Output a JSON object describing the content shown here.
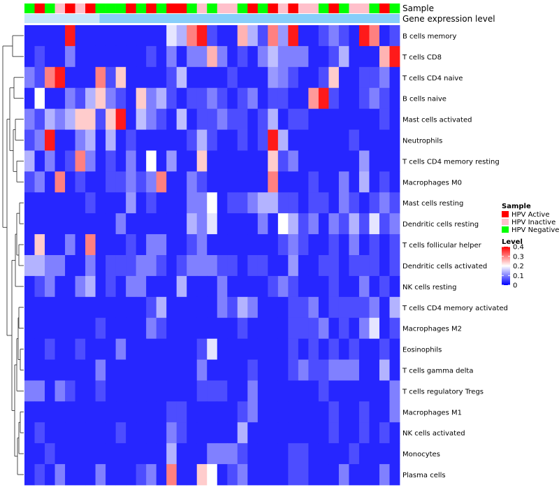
{
  "chart_data": {
    "type": "heatmap",
    "title": "",
    "xlabel": "",
    "ylabel": "",
    "annotation_tracks": [
      "Sample",
      "Gene expression level"
    ],
    "rows": [
      "B cells memory",
      "T cells CD8",
      "T cells CD4 naive",
      "B cells naive",
      "Mast cells activated",
      "Neutrophils",
      "T cells CD4 memory resting",
      "Macrophages M0",
      "Mast cells resting",
      "Dendritic cells resting",
      "T cells follicular helper",
      "Dendritic cells activated",
      "NK cells resting",
      "T cells CD4 memory activated",
      "Macrophages M2",
      "Eosinophils",
      "T cells gamma delta",
      "T cells regulatory  Tregs",
      "Macrophages M1",
      "NK cells activated",
      "Monocytes",
      "Plasma cells"
    ],
    "sample_groups": [
      "N",
      "A",
      "N",
      "I",
      "A",
      "I",
      "A",
      "N",
      "N",
      "N",
      "A",
      "N",
      "A",
      "N",
      "A",
      "A",
      "N",
      "I",
      "N",
      "I",
      "I",
      "N",
      "A",
      "N",
      "A",
      "I",
      "A",
      "I",
      "I",
      "N",
      "A",
      "N",
      "I",
      "I",
      "N",
      "A",
      "N"
    ],
    "values": [
      [
        0.03,
        0.03,
        0.03,
        0.03,
        0.38,
        0.03,
        0.03,
        0.03,
        0.03,
        0.03,
        0.03,
        0.03,
        0.03,
        0.03,
        0.18,
        0.14,
        0.3,
        0.38,
        0.06,
        0.03,
        0.03,
        0.26,
        0.14,
        0.06,
        0.3,
        0.12,
        0.38,
        0.03,
        0.03,
        0.06,
        0.1,
        0.06,
        0.03,
        0.38,
        0.3,
        0.03,
        0.06
      ],
      [
        0.03,
        0.06,
        0.03,
        0.03,
        0.1,
        0.03,
        0.03,
        0.03,
        0.03,
        0.03,
        0.03,
        0.03,
        0.06,
        0.03,
        0.1,
        0.03,
        0.1,
        0.1,
        0.26,
        0.1,
        0.03,
        0.06,
        0.03,
        0.1,
        0.15,
        0.1,
        0.1,
        0.1,
        0.03,
        0.03,
        0.06,
        0.14,
        0.03,
        0.03,
        0.03,
        0.26,
        0.38
      ],
      [
        0.1,
        0.06,
        0.3,
        0.38,
        0.03,
        0.03,
        0.03,
        0.3,
        0.06,
        0.24,
        0.03,
        0.03,
        0.03,
        0.03,
        0.06,
        0.15,
        0.03,
        0.03,
        0.03,
        0.03,
        0.06,
        0.03,
        0.03,
        0.03,
        0.12,
        0.1,
        0.06,
        0.03,
        0.03,
        0.06,
        0.24,
        0.03,
        0.03,
        0.06,
        0.06,
        0.1,
        0.03
      ],
      [
        0.03,
        0.2,
        0.03,
        0.03,
        0.1,
        0.06,
        0.14,
        0.24,
        0.1,
        0.06,
        0.03,
        0.24,
        0.1,
        0.14,
        0.06,
        0.03,
        0.06,
        0.06,
        0.1,
        0.06,
        0.03,
        0.06,
        0.1,
        0.03,
        0.06,
        0.06,
        0.03,
        0.03,
        0.28,
        0.38,
        0.06,
        0.03,
        0.03,
        0.06,
        0.1,
        0.06,
        0.03
      ],
      [
        0.1,
        0.06,
        0.14,
        0.1,
        0.14,
        0.24,
        0.24,
        0.06,
        0.24,
        0.38,
        0.03,
        0.15,
        0.1,
        0.06,
        0.03,
        0.15,
        0.03,
        0.06,
        0.06,
        0.1,
        0.06,
        0.06,
        0.03,
        0.06,
        0.14,
        0.03,
        0.06,
        0.06,
        0.03,
        0.03,
        0.03,
        0.03,
        0.03,
        0.03,
        0.03,
        0.06,
        0.03
      ],
      [
        0.06,
        0.1,
        0.38,
        0.03,
        0.03,
        0.1,
        0.14,
        0.03,
        0.14,
        0.03,
        0.06,
        0.03,
        0.03,
        0.03,
        0.03,
        0.03,
        0.06,
        0.14,
        0.06,
        0.03,
        0.03,
        0.06,
        0.03,
        0.06,
        0.38,
        0.14,
        0.03,
        0.03,
        0.03,
        0.03,
        0.03,
        0.03,
        0.06,
        0.03,
        0.03,
        0.03,
        0.03
      ],
      [
        0.14,
        0.03,
        0.1,
        0.03,
        0.06,
        0.3,
        0.1,
        0.03,
        0.06,
        0.03,
        0.1,
        0.03,
        0.2,
        0.03,
        0.12,
        0.03,
        0.03,
        0.24,
        0.03,
        0.03,
        0.03,
        0.03,
        0.03,
        0.03,
        0.24,
        0.06,
        0.1,
        0.03,
        0.03,
        0.03,
        0.03,
        0.03,
        0.03,
        0.12,
        0.03,
        0.03,
        0.03
      ],
      [
        0.06,
        0.1,
        0.03,
        0.3,
        0.03,
        0.06,
        0.03,
        0.03,
        0.06,
        0.06,
        0.1,
        0.06,
        0.1,
        0.3,
        0.03,
        0.03,
        0.1,
        0.06,
        0.03,
        0.03,
        0.03,
        0.03,
        0.03,
        0.03,
        0.3,
        0.03,
        0.03,
        0.03,
        0.06,
        0.03,
        0.03,
        0.1,
        0.03,
        0.14,
        0.03,
        0.06,
        0.03
      ],
      [
        0.03,
        0.03,
        0.03,
        0.03,
        0.03,
        0.03,
        0.06,
        0.03,
        0.03,
        0.03,
        0.12,
        0.03,
        0.06,
        0.03,
        0.03,
        0.03,
        0.1,
        0.1,
        0.2,
        0.03,
        0.06,
        0.06,
        0.1,
        0.14,
        0.14,
        0.06,
        0.06,
        0.03,
        0.06,
        0.06,
        0.03,
        0.1,
        0.06,
        0.03,
        0.06,
        0.1,
        0.06
      ],
      [
        0.03,
        0.03,
        0.03,
        0.03,
        0.03,
        0.03,
        0.03,
        0.03,
        0.03,
        0.1,
        0.03,
        0.03,
        0.03,
        0.03,
        0.03,
        0.03,
        0.14,
        0.1,
        0.18,
        0.03,
        0.03,
        0.03,
        0.03,
        0.1,
        0.03,
        0.2,
        0.14,
        0.06,
        0.1,
        0.03,
        0.1,
        0.06,
        0.14,
        0.06,
        0.18,
        0.06,
        0.1
      ],
      [
        0.03,
        0.24,
        0.03,
        0.03,
        0.1,
        0.03,
        0.3,
        0.03,
        0.03,
        0.03,
        0.06,
        0.03,
        0.1,
        0.1,
        0.03,
        0.03,
        0.06,
        0.1,
        0.03,
        0.03,
        0.03,
        0.03,
        0.03,
        0.03,
        0.03,
        0.06,
        0.1,
        0.06,
        0.03,
        0.03,
        0.06,
        0.03,
        0.1,
        0.03,
        0.06,
        0.03,
        0.06
      ],
      [
        0.14,
        0.14,
        0.1,
        0.1,
        0.03,
        0.03,
        0.1,
        0.03,
        0.06,
        0.06,
        0.06,
        0.1,
        0.1,
        0.06,
        0.03,
        0.06,
        0.1,
        0.1,
        0.1,
        0.06,
        0.06,
        0.03,
        0.06,
        0.06,
        0.03,
        0.03,
        0.12,
        0.03,
        0.03,
        0.06,
        0.06,
        0.03,
        0.06,
        0.06,
        0.06,
        0.03,
        0.06
      ],
      [
        0.03,
        0.06,
        0.1,
        0.03,
        0.03,
        0.1,
        0.14,
        0.03,
        0.06,
        0.03,
        0.1,
        0.1,
        0.03,
        0.03,
        0.03,
        0.14,
        0.03,
        0.03,
        0.03,
        0.1,
        0.03,
        0.03,
        0.03,
        0.03,
        0.06,
        0.1,
        0.06,
        0.03,
        0.03,
        0.03,
        0.06,
        0.03,
        0.03,
        0.1,
        0.03,
        0.06,
        0.03
      ],
      [
        0.03,
        0.03,
        0.03,
        0.03,
        0.03,
        0.03,
        0.03,
        0.03,
        0.03,
        0.03,
        0.03,
        0.03,
        0.06,
        0.14,
        0.03,
        0.03,
        0.03,
        0.03,
        0.03,
        0.1,
        0.06,
        0.14,
        0.1,
        0.03,
        0.03,
        0.03,
        0.06,
        0.06,
        0.1,
        0.03,
        0.06,
        0.06,
        0.06,
        0.06,
        0.1,
        0.03,
        0.14
      ],
      [
        0.03,
        0.03,
        0.03,
        0.03,
        0.03,
        0.03,
        0.03,
        0.06,
        0.03,
        0.03,
        0.03,
        0.03,
        0.1,
        0.06,
        0.03,
        0.03,
        0.03,
        0.03,
        0.03,
        0.03,
        0.03,
        0.06,
        0.03,
        0.03,
        0.03,
        0.03,
        0.06,
        0.06,
        0.06,
        0.1,
        0.03,
        0.06,
        0.03,
        0.1,
        0.18,
        0.03,
        0.06
      ],
      [
        0.03,
        0.03,
        0.06,
        0.03,
        0.03,
        0.06,
        0.03,
        0.03,
        0.03,
        0.1,
        0.03,
        0.03,
        0.03,
        0.03,
        0.03,
        0.03,
        0.03,
        0.06,
        0.18,
        0.03,
        0.03,
        0.03,
        0.03,
        0.03,
        0.03,
        0.03,
        0.06,
        0.03,
        0.06,
        0.03,
        0.06,
        0.03,
        0.06,
        0.03,
        0.03,
        0.06,
        0.03
      ],
      [
        0.03,
        0.03,
        0.03,
        0.03,
        0.03,
        0.03,
        0.03,
        0.1,
        0.03,
        0.03,
        0.03,
        0.03,
        0.03,
        0.03,
        0.03,
        0.03,
        0.03,
        0.1,
        0.03,
        0.03,
        0.03,
        0.03,
        0.06,
        0.03,
        0.03,
        0.03,
        0.06,
        0.1,
        0.06,
        0.06,
        0.1,
        0.1,
        0.1,
        0.03,
        0.03,
        0.14,
        0.03
      ],
      [
        0.1,
        0.1,
        0.03,
        0.1,
        0.06,
        0.03,
        0.03,
        0.06,
        0.03,
        0.03,
        0.03,
        0.03,
        0.03,
        0.03,
        0.03,
        0.03,
        0.03,
        0.06,
        0.06,
        0.06,
        0.03,
        0.03,
        0.1,
        0.03,
        0.03,
        0.03,
        0.03,
        0.03,
        0.03,
        0.06,
        0.03,
        0.03,
        0.03,
        0.03,
        0.03,
        0.03,
        0.1
      ],
      [
        0.03,
        0.03,
        0.03,
        0.03,
        0.03,
        0.03,
        0.03,
        0.03,
        0.03,
        0.03,
        0.03,
        0.03,
        0.03,
        0.03,
        0.06,
        0.06,
        0.03,
        0.03,
        0.03,
        0.03,
        0.03,
        0.06,
        0.1,
        0.03,
        0.03,
        0.03,
        0.03,
        0.03,
        0.03,
        0.03,
        0.06,
        0.03,
        0.03,
        0.06,
        0.03,
        0.03,
        0.1
      ],
      [
        0.03,
        0.06,
        0.03,
        0.03,
        0.03,
        0.03,
        0.03,
        0.03,
        0.03,
        0.06,
        0.03,
        0.03,
        0.03,
        0.03,
        0.1,
        0.06,
        0.03,
        0.03,
        0.03,
        0.03,
        0.03,
        0.14,
        0.03,
        0.03,
        0.03,
        0.03,
        0.03,
        0.03,
        0.03,
        0.03,
        0.06,
        0.03,
        0.03,
        0.06,
        0.03,
        0.06,
        0.03
      ],
      [
        0.03,
        0.03,
        0.06,
        0.03,
        0.03,
        0.03,
        0.03,
        0.03,
        0.03,
        0.03,
        0.03,
        0.03,
        0.03,
        0.03,
        0.14,
        0.03,
        0.03,
        0.03,
        0.1,
        0.1,
        0.1,
        0.06,
        0.03,
        0.03,
        0.03,
        0.03,
        0.06,
        0.06,
        0.03,
        0.03,
        0.03,
        0.03,
        0.06,
        0.03,
        0.03,
        0.03,
        0.03
      ],
      [
        0.03,
        0.06,
        0.03,
        0.1,
        0.03,
        0.03,
        0.03,
        0.1,
        0.03,
        0.03,
        0.03,
        0.06,
        0.1,
        0.03,
        0.3,
        0.03,
        0.03,
        0.24,
        0.2,
        0.03,
        0.06,
        0.1,
        0.03,
        0.03,
        0.03,
        0.03,
        0.06,
        0.06,
        0.03,
        0.03,
        0.03,
        0.1,
        0.03,
        0.03,
        0.03,
        0.1,
        0.03
      ]
    ],
    "value_range": [
      0,
      0.4
    ],
    "legend": {
      "sample_title": "Sample",
      "sample_entries": [
        {
          "key": "A",
          "label": "HPV Active",
          "color": "#ff0000"
        },
        {
          "key": "I",
          "label": "HPV Inactive",
          "color": "#ffc0cb"
        },
        {
          "key": "N",
          "label": "HPV Negative",
          "color": "#00ff00"
        }
      ],
      "level_title": "Level",
      "level_ticks": [
        "0.4",
        "0.3",
        "0.2",
        "0.1",
        "0"
      ],
      "level_tick_values": [
        0.4,
        0.3,
        0.2,
        0.1,
        0
      ],
      "gradient_colors": [
        "#0000ff",
        "#ffffff",
        "#ff0000"
      ],
      "placement": "right"
    },
    "gene_expression_color": "#87cefa"
  }
}
